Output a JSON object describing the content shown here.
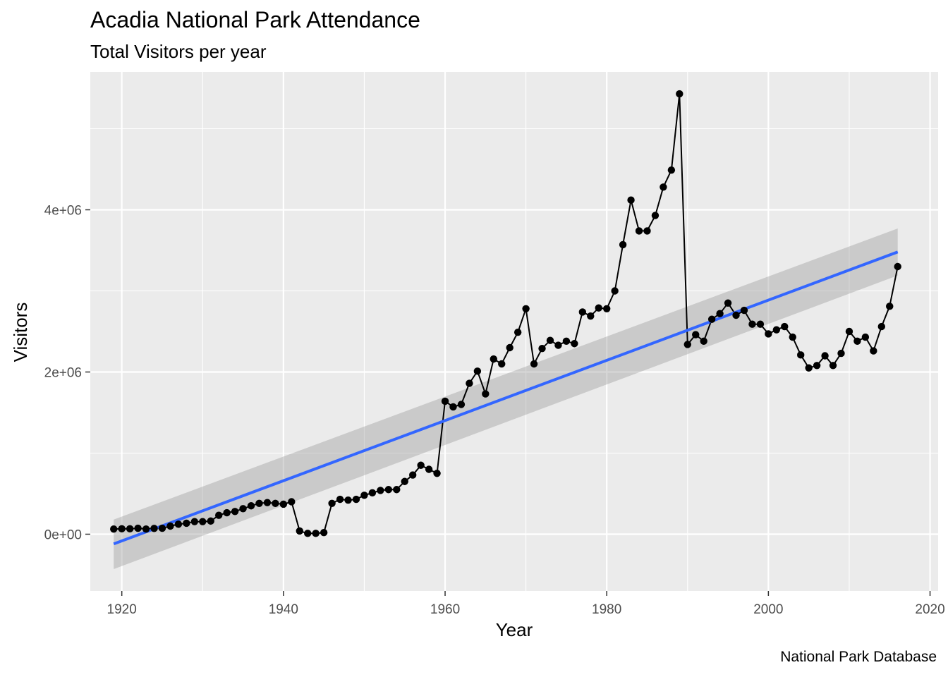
{
  "chart_data": {
    "type": "line",
    "title": "Acadia National Park Attendance",
    "subtitle": "Total Visitors per year",
    "caption": "National Park Database",
    "xlabel": "Year",
    "ylabel": "Visitors",
    "xlim": [
      1916.1,
      2021
    ],
    "ylim": [
      -700000,
      5700000
    ],
    "x_ticks": [
      1920,
      1940,
      1960,
      1980,
      2000,
      2020
    ],
    "y_ticks": [
      0,
      2000000,
      4000000
    ],
    "y_tick_labels": [
      "0e+00",
      "2e+06",
      "4e+06"
    ],
    "grid": true,
    "series": [
      {
        "x": [
          1919,
          1920,
          1921,
          1922,
          1923,
          1924,
          1925,
          1926,
          1927,
          1928,
          1929,
          1930,
          1931,
          1932,
          1933,
          1934,
          1935,
          1936,
          1937,
          1938,
          1939,
          1940,
          1941,
          1942,
          1943,
          1944,
          1945,
          1946,
          1947,
          1948,
          1949,
          1950,
          1951,
          1952,
          1953,
          1954,
          1955,
          1956,
          1957,
          1958,
          1959,
          1960,
          1961,
          1962,
          1963,
          1964,
          1965,
          1966,
          1967,
          1968,
          1969,
          1970,
          1971,
          1972,
          1973,
          1974,
          1975,
          1976,
          1977,
          1978,
          1979,
          1980,
          1981,
          1982,
          1983,
          1984,
          1985,
          1986,
          1987,
          1988,
          1989,
          1990,
          1991,
          1992,
          1993,
          1994,
          1995,
          1996,
          1997,
          1998,
          1999,
          2000,
          2001,
          2002,
          2003,
          2004,
          2005,
          2006,
          2007,
          2008,
          2009,
          2010,
          2011,
          2012,
          2013,
          2014,
          2015,
          2016
        ],
        "values": [
          64000,
          66500,
          66500,
          73000,
          64000,
          71000,
          73000,
          100000,
          123000,
          135000,
          155000,
          155000,
          162000,
          233000,
          265000,
          280000,
          315000,
          350000,
          380000,
          390000,
          380000,
          370000,
          400000,
          40000,
          10000,
          10000,
          20000,
          380000,
          430000,
          420000,
          430000,
          480000,
          510000,
          540000,
          550000,
          550000,
          650000,
          730000,
          850000,
          800000,
          750000,
          1640000,
          1570000,
          1600000,
          1860000,
          2010000,
          1730000,
          2160000,
          2100000,
          2300000,
          2490000,
          2780000,
          2100000,
          2290000,
          2390000,
          2330000,
          2380000,
          2350000,
          2740000,
          2690000,
          2790000,
          2780000,
          3000000,
          3570000,
          4120000,
          3740000,
          3740000,
          3930000,
          4280000,
          4490000,
          5430000,
          2340000,
          2460000,
          2380000,
          2650000,
          2720000,
          2850000,
          2700000,
          2760000,
          2590000,
          2590000,
          2470000,
          2520000,
          2560000,
          2430000,
          2210000,
          2050000,
          2080000,
          2200000,
          2080000,
          2230000,
          2500000,
          2380000,
          2430000,
          2260000,
          2560000,
          2810000,
          3300000
        ]
      },
      {
        "name": "lm fit",
        "type": "smooth",
        "color": "#3366FF",
        "x": [
          1919,
          2016
        ],
        "values": [
          -120000,
          3480000
        ],
        "ci_lower": [
          -430000,
          3190000
        ],
        "ci_upper": [
          180000,
          3770000
        ]
      }
    ]
  }
}
